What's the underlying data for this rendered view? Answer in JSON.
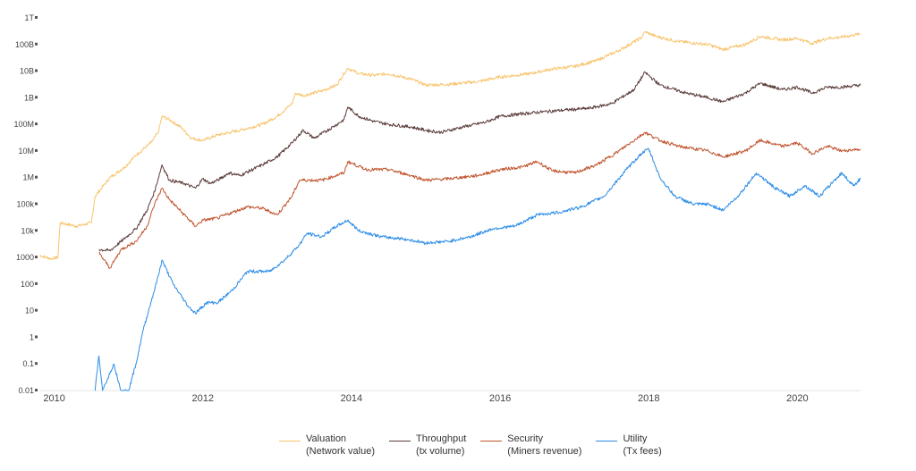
{
  "chart_data": {
    "type": "line",
    "title": "",
    "xlabel": "",
    "ylabel": "",
    "y_scale": "log",
    "ylim": [
      0.01,
      1000000000000
    ],
    "xlim": [
      2009.8,
      2020.85
    ],
    "y_ticks": [
      {
        "value": 0.01,
        "label": "0.01"
      },
      {
        "value": 0.1,
        "label": "0.1"
      },
      {
        "value": 1,
        "label": "1"
      },
      {
        "value": 10,
        "label": "10"
      },
      {
        "value": 100,
        "label": "100"
      },
      {
        "value": 1000,
        "label": "1000"
      },
      {
        "value": 10000,
        "label": "10k"
      },
      {
        "value": 100000,
        "label": "100k"
      },
      {
        "value": 1000000,
        "label": "1M"
      },
      {
        "value": 10000000,
        "label": "10M"
      },
      {
        "value": 100000000,
        "label": "100M"
      },
      {
        "value": 1000000000,
        "label": "1B"
      },
      {
        "value": 10000000000,
        "label": "10B"
      },
      {
        "value": 100000000000,
        "label": "100B"
      },
      {
        "value": 1000000000000,
        "label": "1T"
      }
    ],
    "x_ticks": [
      {
        "value": 2010,
        "label": "2010"
      },
      {
        "value": 2012,
        "label": "2012"
      },
      {
        "value": 2014,
        "label": "2014"
      },
      {
        "value": 2016,
        "label": "2016"
      },
      {
        "value": 2018,
        "label": "2018"
      },
      {
        "value": 2020,
        "label": "2020"
      }
    ],
    "grid": false,
    "legend_position": "bottom-center",
    "series": [
      {
        "name": "Valuation (Network value)",
        "color": "#f7c46c",
        "points": [
          [
            2009.8,
            1200
          ],
          [
            2009.95,
            900
          ],
          [
            2010.05,
            1000
          ],
          [
            2010.08,
            20000
          ],
          [
            2010.3,
            15000
          ],
          [
            2010.5,
            20000
          ],
          [
            2010.55,
            200000
          ],
          [
            2010.75,
            1000000
          ],
          [
            2010.95,
            2500000
          ],
          [
            2011.1,
            7000000
          ],
          [
            2011.3,
            20000000
          ],
          [
            2011.4,
            50000000
          ],
          [
            2011.45,
            200000000
          ],
          [
            2011.55,
            150000000
          ],
          [
            2011.7,
            80000000
          ],
          [
            2011.85,
            30000000
          ],
          [
            2012.0,
            25000000
          ],
          [
            2012.2,
            40000000
          ],
          [
            2012.5,
            60000000
          ],
          [
            2012.8,
            100000000
          ],
          [
            2013.0,
            200000000
          ],
          [
            2013.2,
            600000000
          ],
          [
            2013.25,
            1500000000
          ],
          [
            2013.35,
            1200000000
          ],
          [
            2013.6,
            1800000000
          ],
          [
            2013.8,
            3000000000
          ],
          [
            2013.9,
            8000000000
          ],
          [
            2013.95,
            13000000000
          ],
          [
            2014.1,
            8000000000
          ],
          [
            2014.3,
            7000000000
          ],
          [
            2014.5,
            8000000000
          ],
          [
            2014.8,
            5000000000
          ],
          [
            2015.0,
            3000000000
          ],
          [
            2015.3,
            3200000000
          ],
          [
            2015.7,
            4000000000
          ],
          [
            2016.0,
            6000000000
          ],
          [
            2016.4,
            8000000000
          ],
          [
            2016.7,
            12000000000
          ],
          [
            2017.0,
            15000000000
          ],
          [
            2017.3,
            25000000000
          ],
          [
            2017.6,
            60000000000
          ],
          [
            2017.9,
            180000000000
          ],
          [
            2017.95,
            300000000000
          ],
          [
            2018.1,
            200000000000
          ],
          [
            2018.4,
            130000000000
          ],
          [
            2018.8,
            100000000000
          ],
          [
            2019.0,
            65000000000
          ],
          [
            2019.3,
            100000000000
          ],
          [
            2019.5,
            200000000000
          ],
          [
            2019.8,
            150000000000
          ],
          [
            2020.0,
            170000000000
          ],
          [
            2020.2,
            110000000000
          ],
          [
            2020.4,
            170000000000
          ],
          [
            2020.6,
            190000000000
          ],
          [
            2020.85,
            250000000000
          ]
        ]
      },
      {
        "name": "Throughput (tx volume)",
        "color": "#5a3b38",
        "points": [
          [
            2010.6,
            2000
          ],
          [
            2010.75,
            1800
          ],
          [
            2010.9,
            4000
          ],
          [
            2011.1,
            12000
          ],
          [
            2011.25,
            60000
          ],
          [
            2011.35,
            300000
          ],
          [
            2011.45,
            3000000
          ],
          [
            2011.55,
            800000
          ],
          [
            2011.75,
            600000
          ],
          [
            2011.9,
            400000
          ],
          [
            2012.0,
            900000
          ],
          [
            2012.1,
            600000
          ],
          [
            2012.2,
            800000
          ],
          [
            2012.35,
            1500000
          ],
          [
            2012.5,
            1200000
          ],
          [
            2012.8,
            3000000
          ],
          [
            2013.0,
            6000000
          ],
          [
            2013.2,
            20000000
          ],
          [
            2013.35,
            60000000
          ],
          [
            2013.5,
            30000000
          ],
          [
            2013.75,
            80000000
          ],
          [
            2013.9,
            150000000
          ],
          [
            2013.95,
            450000000
          ],
          [
            2014.1,
            200000000
          ],
          [
            2014.3,
            130000000
          ],
          [
            2014.5,
            100000000
          ],
          [
            2014.8,
            80000000
          ],
          [
            2015.0,
            60000000
          ],
          [
            2015.2,
            50000000
          ],
          [
            2015.5,
            80000000
          ],
          [
            2015.8,
            120000000
          ],
          [
            2016.0,
            200000000
          ],
          [
            2016.3,
            250000000
          ],
          [
            2016.6,
            300000000
          ],
          [
            2016.9,
            350000000
          ],
          [
            2017.2,
            400000000
          ],
          [
            2017.5,
            600000000
          ],
          [
            2017.8,
            2000000000
          ],
          [
            2017.95,
            9000000000
          ],
          [
            2018.15,
            3000000000
          ],
          [
            2018.5,
            1500000000
          ],
          [
            2018.8,
            1000000000
          ],
          [
            2019.0,
            700000000
          ],
          [
            2019.3,
            1500000000
          ],
          [
            2019.5,
            3500000000
          ],
          [
            2019.8,
            2000000000
          ],
          [
            2020.0,
            2500000000
          ],
          [
            2020.2,
            1500000000
          ],
          [
            2020.4,
            2500000000
          ],
          [
            2020.6,
            2500000000
          ],
          [
            2020.85,
            3000000000
          ]
        ]
      },
      {
        "name": "Security (Miners revenue)",
        "color": "#c0552f",
        "points": [
          [
            2010.6,
            1500
          ],
          [
            2010.75,
            400
          ],
          [
            2010.9,
            2000
          ],
          [
            2011.1,
            4000
          ],
          [
            2011.25,
            15000
          ],
          [
            2011.35,
            100000
          ],
          [
            2011.45,
            400000
          ],
          [
            2011.55,
            150000
          ],
          [
            2011.75,
            40000
          ],
          [
            2011.9,
            15000
          ],
          [
            2012.0,
            25000
          ],
          [
            2012.2,
            30000
          ],
          [
            2012.4,
            50000
          ],
          [
            2012.6,
            80000
          ],
          [
            2012.8,
            70000
          ],
          [
            2013.0,
            40000
          ],
          [
            2013.2,
            200000
          ],
          [
            2013.3,
            800000
          ],
          [
            2013.6,
            800000
          ],
          [
            2013.9,
            1500000
          ],
          [
            2013.95,
            4000000
          ],
          [
            2014.2,
            2000000
          ],
          [
            2014.5,
            2000000
          ],
          [
            2014.8,
            1200000
          ],
          [
            2015.0,
            800000
          ],
          [
            2015.3,
            900000
          ],
          [
            2015.7,
            1200000
          ],
          [
            2016.0,
            2000000
          ],
          [
            2016.3,
            2500000
          ],
          [
            2016.5,
            4000000
          ],
          [
            2016.7,
            1800000
          ],
          [
            2017.0,
            1500000
          ],
          [
            2017.3,
            3000000
          ],
          [
            2017.6,
            10000000
          ],
          [
            2017.95,
            50000000
          ],
          [
            2018.15,
            25000000
          ],
          [
            2018.4,
            15000000
          ],
          [
            2018.8,
            10000000
          ],
          [
            2019.0,
            6000000
          ],
          [
            2019.3,
            10000000
          ],
          [
            2019.5,
            25000000
          ],
          [
            2019.8,
            15000000
          ],
          [
            2020.0,
            20000000
          ],
          [
            2020.2,
            8000000
          ],
          [
            2020.4,
            15000000
          ],
          [
            2020.6,
            10000000
          ],
          [
            2020.85,
            12000000
          ]
        ]
      },
      {
        "name": "Utility (Tx fees)",
        "color": "#2b8ce6",
        "points": [
          [
            2010.55,
            0.01
          ],
          [
            2010.6,
            0.2
          ],
          [
            2010.65,
            0.01
          ],
          [
            2010.8,
            0.1
          ],
          [
            2010.9,
            0.01
          ],
          [
            2011.0,
            0.01
          ],
          [
            2011.1,
            0.1
          ],
          [
            2011.2,
            2
          ],
          [
            2011.3,
            20
          ],
          [
            2011.4,
            200
          ],
          [
            2011.45,
            800
          ],
          [
            2011.6,
            100
          ],
          [
            2011.8,
            15
          ],
          [
            2011.9,
            8
          ],
          [
            2012.05,
            20
          ],
          [
            2012.2,
            20
          ],
          [
            2012.4,
            60
          ],
          [
            2012.6,
            300
          ],
          [
            2012.9,
            300
          ],
          [
            2013.1,
            800
          ],
          [
            2013.3,
            3000
          ],
          [
            2013.4,
            8000
          ],
          [
            2013.6,
            6000
          ],
          [
            2013.8,
            15000
          ],
          [
            2013.95,
            25000
          ],
          [
            2014.1,
            10000
          ],
          [
            2014.4,
            6000
          ],
          [
            2014.7,
            5000
          ],
          [
            2015.0,
            3500
          ],
          [
            2015.3,
            4000
          ],
          [
            2015.6,
            6000
          ],
          [
            2015.9,
            12000
          ],
          [
            2016.2,
            15000
          ],
          [
            2016.5,
            40000
          ],
          [
            2016.8,
            50000
          ],
          [
            2017.1,
            80000
          ],
          [
            2017.4,
            200000
          ],
          [
            2017.7,
            2000000
          ],
          [
            2017.9,
            8000000
          ],
          [
            2018.0,
            12000000
          ],
          [
            2018.15,
            1000000
          ],
          [
            2018.35,
            200000
          ],
          [
            2018.6,
            100000
          ],
          [
            2018.8,
            100000
          ],
          [
            2019.0,
            60000
          ],
          [
            2019.2,
            200000
          ],
          [
            2019.45,
            1500000
          ],
          [
            2019.7,
            400000
          ],
          [
            2019.9,
            200000
          ],
          [
            2020.1,
            500000
          ],
          [
            2020.3,
            200000
          ],
          [
            2020.5,
            800000
          ],
          [
            2020.6,
            1500000
          ],
          [
            2020.75,
            500000
          ],
          [
            2020.85,
            900000
          ]
        ]
      }
    ]
  },
  "legend": [
    {
      "line1": "Valuation",
      "line2": "(Network value)",
      "color": "#f7c46c"
    },
    {
      "line1": "Throughput",
      "line2": "(tx volume)",
      "color": "#5a3b38"
    },
    {
      "line1": "Security",
      "line2": "(Miners revenue)",
      "color": "#c0552f"
    },
    {
      "line1": "Utility",
      "line2": "(Tx fees)",
      "color": "#2b8ce6"
    }
  ]
}
